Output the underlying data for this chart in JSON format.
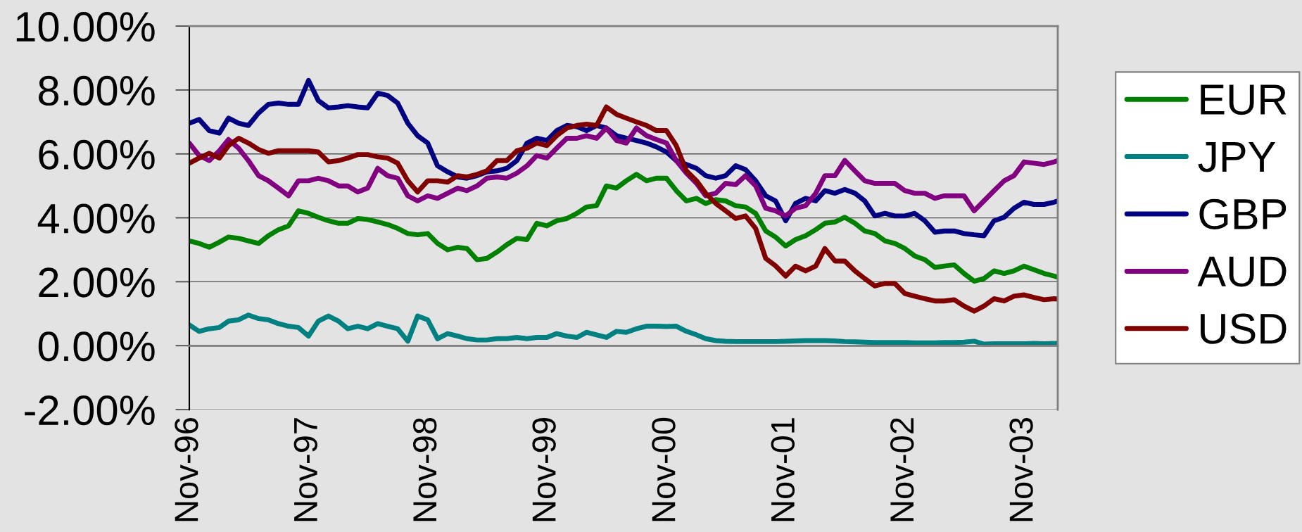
{
  "chart_data": {
    "type": "line",
    "x": [
      "1996-11",
      "1996-12",
      "1997-01",
      "1997-02",
      "1997-03",
      "1997-04",
      "1997-05",
      "1997-06",
      "1997-07",
      "1997-08",
      "1997-09",
      "1997-10",
      "1997-11",
      "1997-12",
      "1998-01",
      "1998-02",
      "1998-03",
      "1998-04",
      "1998-05",
      "1998-06",
      "1998-07",
      "1998-08",
      "1998-09",
      "1998-10",
      "1998-11",
      "1998-12",
      "1999-01",
      "1999-02",
      "1999-03",
      "1999-04",
      "1999-05",
      "1999-06",
      "1999-07",
      "1999-08",
      "1999-09",
      "1999-10",
      "1999-11",
      "1999-12",
      "2000-01",
      "2000-02",
      "2000-03",
      "2000-04",
      "2000-05",
      "2000-06",
      "2000-07",
      "2000-08",
      "2000-09",
      "2000-10",
      "2000-11",
      "2000-12",
      "2001-01",
      "2001-02",
      "2001-03",
      "2001-04",
      "2001-05",
      "2001-06",
      "2001-07",
      "2001-08",
      "2001-09",
      "2001-10",
      "2001-11",
      "2001-12",
      "2002-01",
      "2002-02",
      "2002-03",
      "2002-04",
      "2002-05",
      "2002-06",
      "2002-07",
      "2002-08",
      "2002-09",
      "2002-10",
      "2002-11",
      "2002-12",
      "2003-01",
      "2003-02",
      "2003-03",
      "2003-04",
      "2003-05",
      "2003-06",
      "2003-07",
      "2003-08",
      "2003-09",
      "2003-10",
      "2003-11",
      "2003-12",
      "2004-01",
      "2004-02",
      "2004-02-12"
    ],
    "series": [
      {
        "name": "EUR",
        "color": "#008000",
        "values": [
          3.28,
          3.2,
          3.08,
          3.24,
          3.4,
          3.36,
          3.28,
          3.2,
          3.44,
          3.63,
          3.75,
          4.22,
          4.14,
          4.02,
          3.91,
          3.83,
          3.83,
          3.98,
          3.95,
          3.87,
          3.79,
          3.67,
          3.51,
          3.47,
          3.51,
          3.2,
          3.0,
          3.08,
          3.04,
          2.69,
          2.73,
          2.93,
          3.16,
          3.36,
          3.32,
          3.83,
          3.75,
          3.91,
          3.98,
          4.14,
          4.34,
          4.38,
          5.0,
          4.93,
          5.16,
          5.36,
          5.16,
          5.24,
          5.24,
          4.85,
          4.53,
          4.61,
          4.45,
          4.57,
          4.53,
          4.38,
          4.34,
          4.14,
          3.59,
          3.4,
          3.12,
          3.32,
          3.44,
          3.63,
          3.83,
          3.87,
          4.02,
          3.83,
          3.59,
          3.51,
          3.28,
          3.2,
          3.04,
          2.81,
          2.69,
          2.45,
          2.49,
          2.53,
          2.26,
          2.02,
          2.1,
          2.34,
          2.26,
          2.34,
          2.49,
          2.38,
          2.26,
          2.18,
          2.14
        ]
      },
      {
        "name": "JPY",
        "color": "#008080",
        "values": [
          0.65,
          0.45,
          0.53,
          0.57,
          0.77,
          0.81,
          0.96,
          0.85,
          0.81,
          0.69,
          0.61,
          0.57,
          0.3,
          0.77,
          0.93,
          0.77,
          0.53,
          0.61,
          0.53,
          0.69,
          0.61,
          0.53,
          0.14,
          0.93,
          0.81,
          0.22,
          0.38,
          0.3,
          0.22,
          0.18,
          0.18,
          0.22,
          0.22,
          0.26,
          0.22,
          0.26,
          0.26,
          0.38,
          0.3,
          0.26,
          0.42,
          0.34,
          0.26,
          0.45,
          0.42,
          0.53,
          0.61,
          0.61,
          0.6,
          0.61,
          0.45,
          0.34,
          0.22,
          0.16,
          0.14,
          0.13,
          0.13,
          0.13,
          0.13,
          0.13,
          0.14,
          0.15,
          0.16,
          0.16,
          0.16,
          0.15,
          0.13,
          0.12,
          0.11,
          0.1,
          0.1,
          0.1,
          0.1,
          0.09,
          0.09,
          0.09,
          0.1,
          0.1,
          0.11,
          0.14,
          0.05,
          0.06,
          0.06,
          0.06,
          0.06,
          0.07,
          0.06,
          0.07,
          0.08
        ]
      },
      {
        "name": "GBP",
        "color": "#000080",
        "values": [
          6.96,
          7.08,
          6.73,
          6.65,
          7.12,
          6.96,
          6.89,
          7.28,
          7.55,
          7.59,
          7.55,
          7.55,
          8.3,
          7.67,
          7.44,
          7.47,
          7.51,
          7.47,
          7.44,
          7.9,
          7.83,
          7.59,
          6.96,
          6.57,
          6.34,
          5.63,
          5.44,
          5.28,
          5.24,
          5.32,
          5.44,
          5.47,
          5.55,
          5.79,
          6.34,
          6.49,
          6.42,
          6.73,
          6.89,
          6.85,
          6.73,
          6.89,
          6.81,
          6.57,
          6.49,
          6.42,
          6.34,
          6.22,
          6.06,
          5.79,
          5.67,
          5.55,
          5.32,
          5.24,
          5.32,
          5.63,
          5.51,
          5.16,
          4.69,
          4.53,
          3.91,
          4.45,
          4.61,
          4.53,
          4.85,
          4.77,
          4.89,
          4.77,
          4.53,
          4.06,
          4.14,
          4.06,
          4.06,
          4.14,
          3.91,
          3.55,
          3.59,
          3.59,
          3.51,
          3.47,
          3.44,
          3.91,
          4.02,
          4.3,
          4.49,
          4.42,
          4.42,
          4.49,
          4.53
        ]
      },
      {
        "name": "AUD",
        "color": "#800080",
        "values": [
          6.34,
          5.95,
          5.79,
          6.1,
          6.45,
          6.18,
          5.79,
          5.32,
          5.16,
          4.93,
          4.69,
          5.16,
          5.16,
          5.24,
          5.16,
          5.0,
          5.0,
          4.81,
          4.93,
          5.55,
          5.32,
          5.24,
          4.69,
          4.53,
          4.69,
          4.61,
          4.77,
          4.93,
          4.85,
          5.0,
          5.24,
          5.28,
          5.24,
          5.4,
          5.63,
          5.95,
          5.87,
          6.18,
          6.49,
          6.49,
          6.57,
          6.49,
          6.81,
          6.42,
          6.34,
          6.81,
          6.57,
          6.45,
          6.34,
          5.79,
          5.4,
          5.08,
          4.69,
          4.77,
          5.08,
          5.04,
          5.32,
          5.0,
          4.3,
          4.22,
          4.06,
          4.3,
          4.38,
          4.77,
          5.32,
          5.32,
          5.8,
          5.47,
          5.16,
          5.08,
          5.08,
          5.08,
          4.85,
          4.77,
          4.77,
          4.61,
          4.69,
          4.69,
          4.69,
          4.22,
          4.53,
          4.85,
          5.16,
          5.32,
          5.75,
          5.71,
          5.67,
          5.75,
          5.79
        ]
      },
      {
        "name": "USD",
        "color": "#800000",
        "values": [
          5.71,
          5.87,
          6.02,
          5.87,
          6.26,
          6.49,
          6.34,
          6.14,
          6.02,
          6.1,
          6.1,
          6.1,
          6.1,
          6.06,
          5.75,
          5.79,
          5.87,
          5.98,
          5.98,
          5.91,
          5.87,
          5.71,
          5.16,
          4.81,
          5.16,
          5.16,
          5.12,
          5.32,
          5.28,
          5.36,
          5.47,
          5.79,
          5.79,
          6.1,
          6.18,
          6.34,
          6.26,
          6.57,
          6.81,
          6.89,
          6.93,
          6.89,
          7.47,
          7.24,
          7.12,
          7.0,
          6.89,
          6.73,
          6.73,
          6.26,
          5.47,
          5.16,
          4.77,
          4.45,
          4.22,
          3.98,
          4.06,
          3.67,
          2.73,
          2.5,
          2.18,
          2.49,
          2.34,
          2.49,
          3.04,
          2.65,
          2.65,
          2.34,
          2.1,
          1.87,
          1.95,
          1.95,
          1.63,
          1.55,
          1.47,
          1.4,
          1.4,
          1.44,
          1.24,
          1.08,
          1.24,
          1.47,
          1.4,
          1.55,
          1.59,
          1.51,
          1.44,
          1.47,
          1.46
        ]
      }
    ],
    "xlim": [
      "1996-11",
      "2004-02-12"
    ],
    "xticks": [
      {
        "value": "1996-11",
        "label": "Nov-96"
      },
      {
        "value": "1997-11",
        "label": "Nov-97"
      },
      {
        "value": "1998-11",
        "label": "Nov-98"
      },
      {
        "value": "1999-11",
        "label": "Nov-99"
      },
      {
        "value": "2000-11",
        "label": "Nov-00"
      },
      {
        "value": "2001-11",
        "label": "Nov-01"
      },
      {
        "value": "2002-11",
        "label": "Nov-02"
      },
      {
        "value": "2003-11",
        "label": "Nov-03"
      }
    ],
    "ylim": [
      -2,
      10
    ],
    "yticks": [
      {
        "value": -2,
        "label": "-2.00%"
      },
      {
        "value": 0,
        "label": "0.00%"
      },
      {
        "value": 2,
        "label": "2.00%"
      },
      {
        "value": 4,
        "label": "4.00%"
      },
      {
        "value": 6,
        "label": "6.00%"
      },
      {
        "value": 8,
        "label": "8.00%"
      },
      {
        "value": 10,
        "label": "10.00%"
      }
    ],
    "grid": "y",
    "legend": "right"
  }
}
